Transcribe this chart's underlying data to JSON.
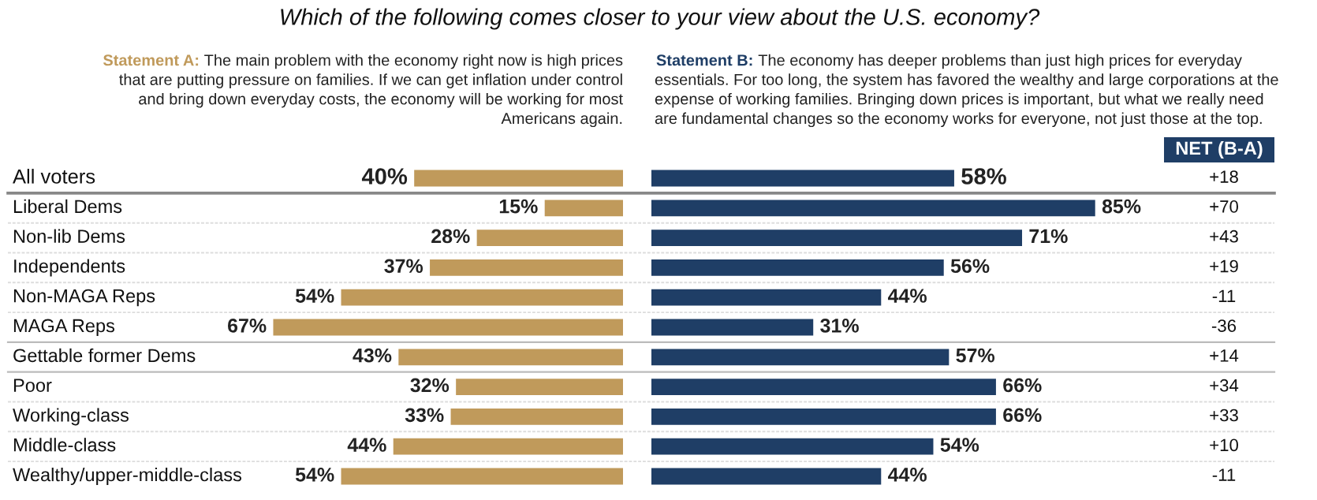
{
  "chart_data": [
    {
      "type": "bar",
      "orientation": "horizontal",
      "title": "Which of the following comes closer to your view about the U.S. economy?",
      "categories": [
        "All voters",
        "Liberal Dems",
        "Non-lib Dems",
        "Independents",
        "Non-MAGA Reps",
        "MAGA Reps",
        "Gettable former Dems",
        "Poor",
        "Working-class",
        "Middle-class",
        "Wealthy/upper-middle-class"
      ],
      "series": [
        {
          "name": "Statement A:",
          "color": "#c09a5b",
          "values": [
            40,
            15,
            28,
            37,
            54,
            67,
            43,
            32,
            33,
            44,
            54
          ],
          "value_labels": [
            "40%",
            "15%",
            "28%",
            "37%",
            "54%",
            "67%",
            "43%",
            "32%",
            "33%",
            "44%",
            "54%"
          ]
        }
      ],
      "annotations": [
        "The main problem with the economy right now is high prices\nthat are putting pressure on families. If we can get inflation under control\nand bring down everyday costs, the economy will be working for most\nAmericans again."
      ]
    },
    {
      "type": "bar",
      "orientation": "horizontal",
      "series": [
        {
          "name": "Statement B:",
          "color": "#1f3e66",
          "values": [
            58,
            85,
            71,
            56,
            44,
            31,
            57,
            66,
            66,
            54,
            44
          ],
          "value_labels": [
            "58%",
            "85%",
            "71%",
            "56%",
            "44%",
            "31%",
            "57%",
            "66%",
            "66%",
            "54%",
            "44%"
          ]
        }
      ],
      "annotations": [
        "The economy has deeper problems than just high prices for everyday\nessentials. For too long, the system has favored the wealthy and large corporations at the\nexpense of working families. Bringing down prices is important, but what we really need\nare fundamental changes so the economy works for everyone, not just those at the top.",
        "NET (B-A)",
        "+18",
        "+70",
        "+43",
        "+19",
        "-11",
        "-36",
        "+14",
        "+34",
        "+33",
        "+10",
        "-11"
      ]
    }
  ]
}
